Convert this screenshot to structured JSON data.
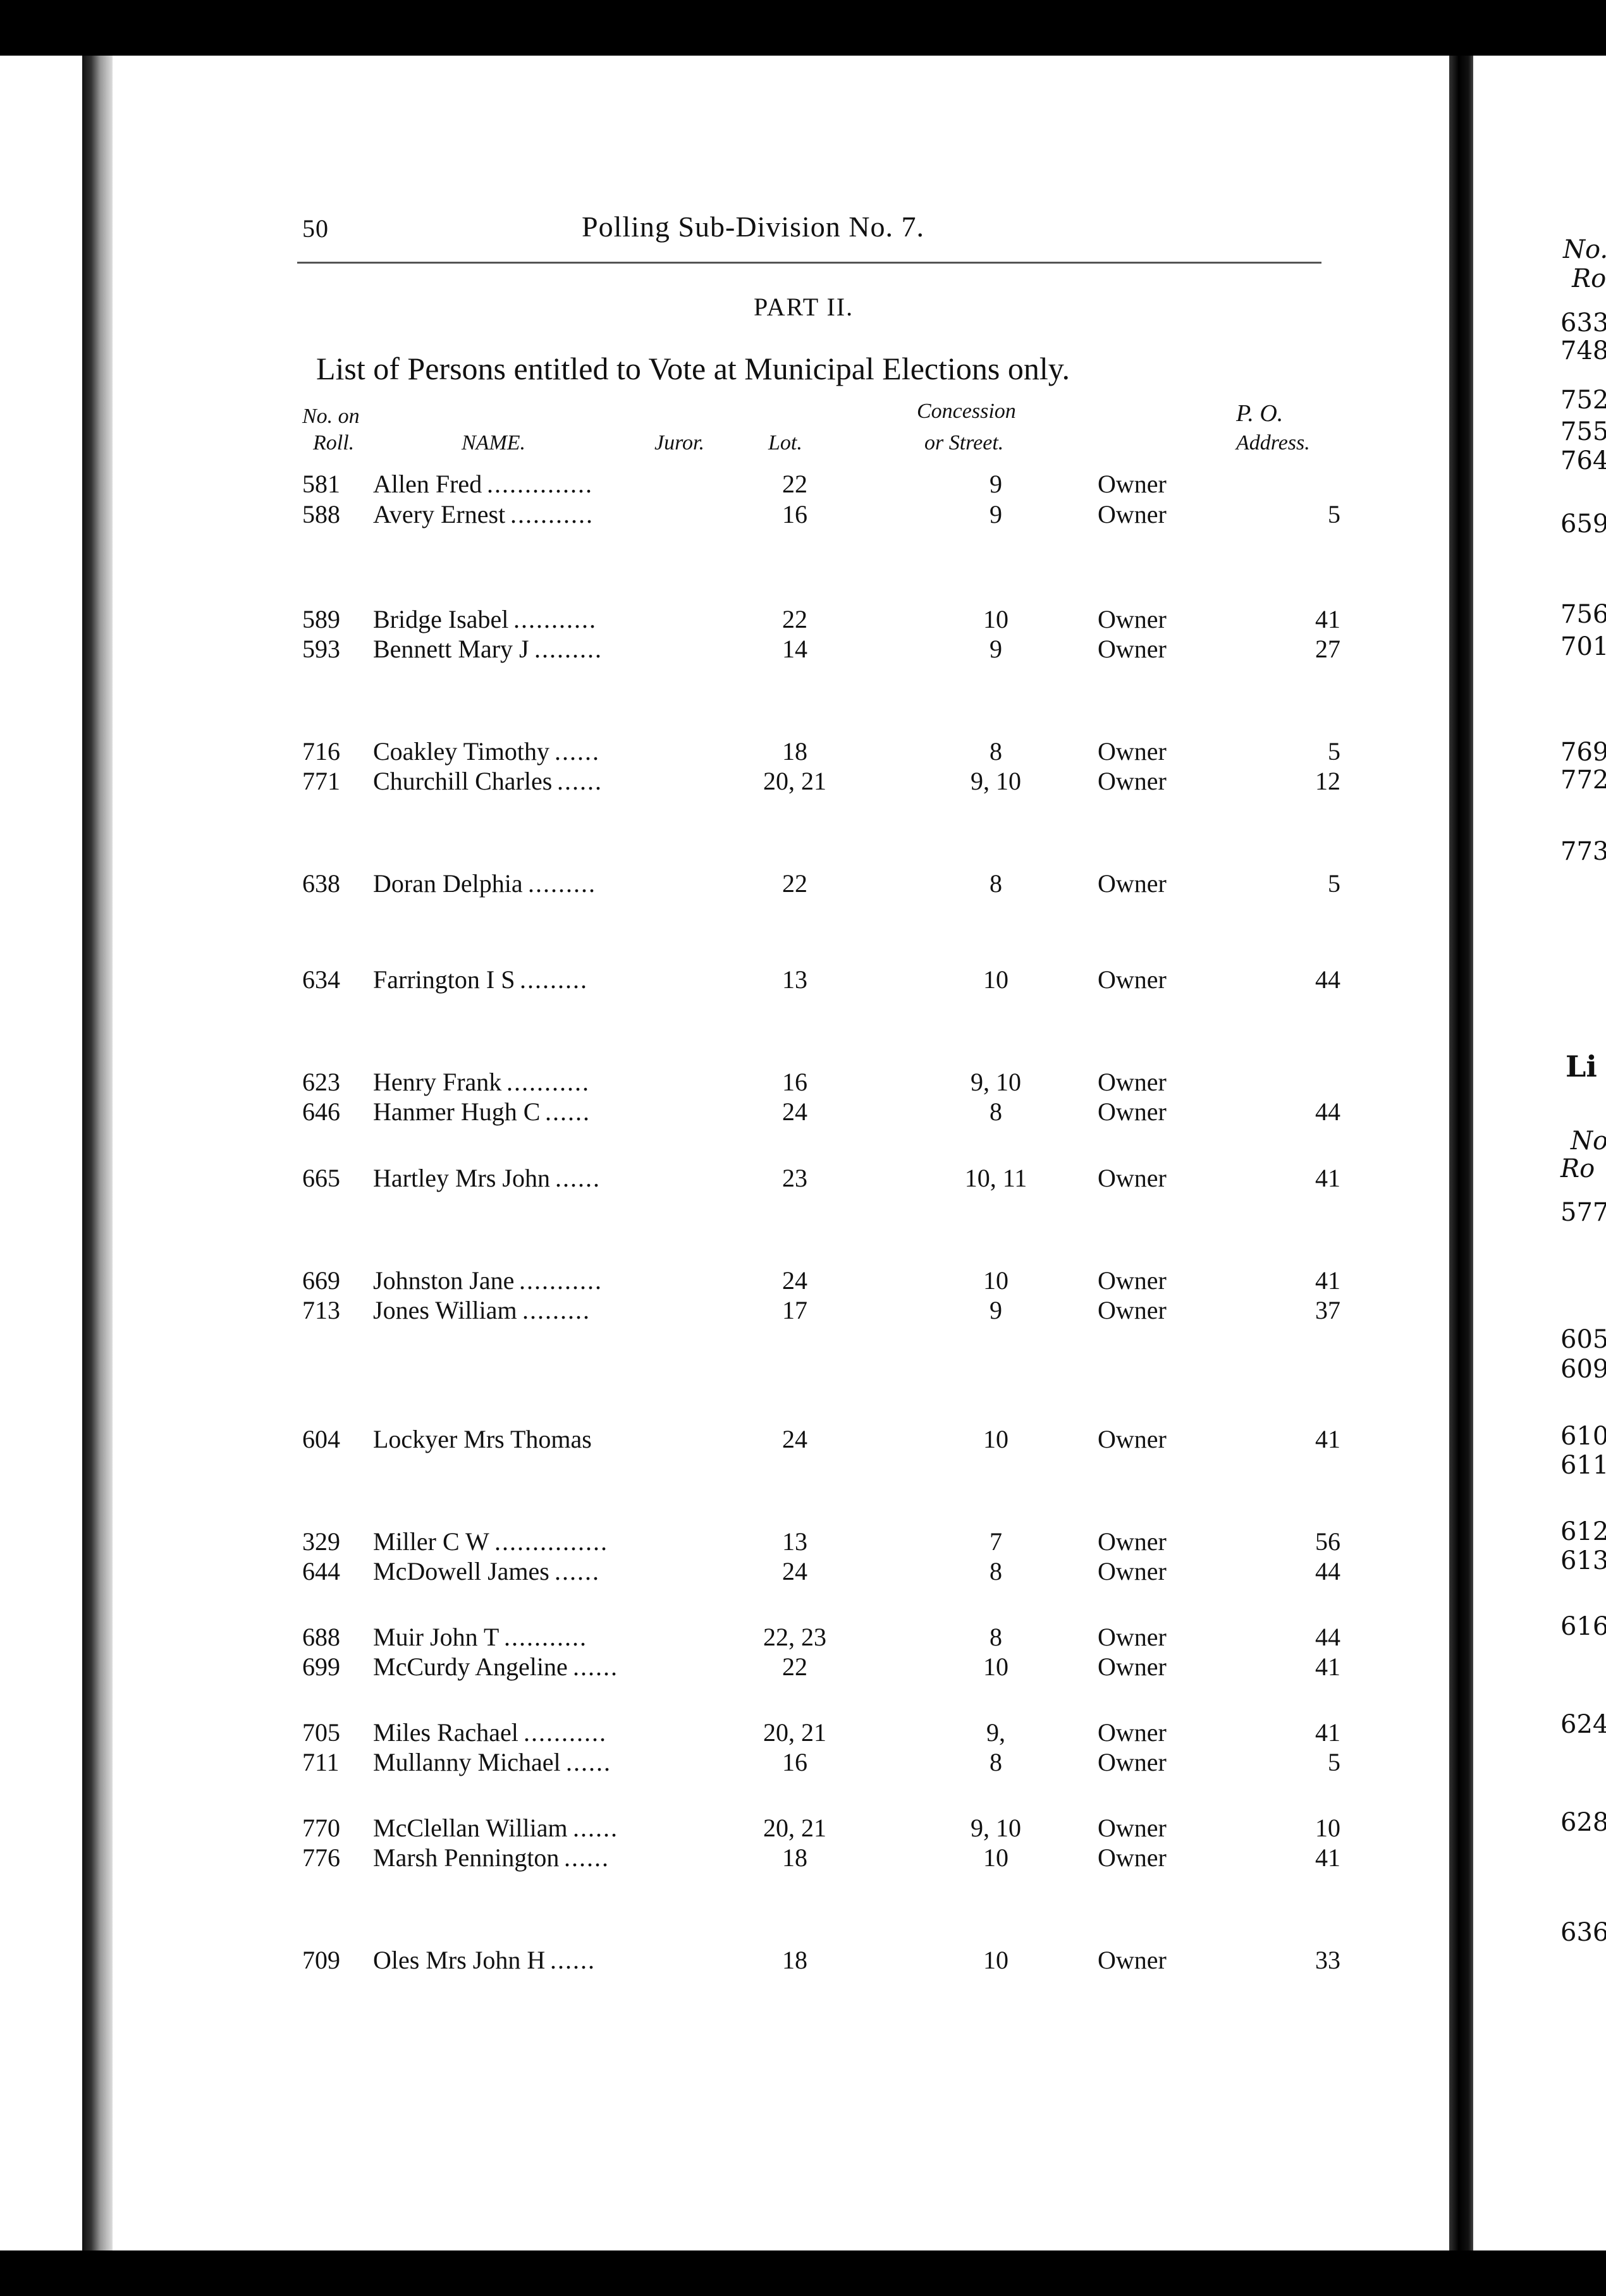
{
  "page_number": "50",
  "running_title": "Polling Sub-Division No. 7.",
  "part": "PART II.",
  "list_title": "List of Persons entitled to Vote at Municipal Elections only.",
  "columns": {
    "no_on": "No. on",
    "roll": "Roll.",
    "name": "NAME.",
    "juror": "Juror.",
    "lot": "Lot.",
    "concession_1": "Concession",
    "concession_2": "or Street.",
    "po_1": "P. O.",
    "po_2": "Address."
  },
  "rows": [
    {
      "no": "581",
      "name": "Allen Fred",
      "dots": "..............",
      "lot": "22",
      "con": "9",
      "status": "Owner",
      "po": ""
    },
    {
      "no": "588",
      "name": "Avery Ernest",
      "dots": "...........",
      "lot": "16",
      "con": "9",
      "status": "Owner",
      "po": "5"
    },
    {
      "no": "589",
      "name": "Bridge Isabel",
      "dots": "...........",
      "lot": "22",
      "con": "10",
      "status": "Owner",
      "po": "41"
    },
    {
      "no": "593",
      "name": "Bennett Mary J",
      "dots": ".........",
      "lot": "14",
      "con": "9",
      "status": "Owner",
      "po": "27"
    },
    {
      "no": "716",
      "name": "Coakley Timothy",
      "dots": "......",
      "lot": "18",
      "con": "8",
      "status": "Owner",
      "po": "5"
    },
    {
      "no": "771",
      "name": "Churchill Charles",
      "dots": "......",
      "lot": "20, 21",
      "con": "9, 10",
      "status": "Owner",
      "po": "12"
    },
    {
      "no": "638",
      "name": "Doran Delphia",
      "dots": ".........",
      "lot": "22",
      "con": "8",
      "status": "Owner",
      "po": "5"
    },
    {
      "no": "634",
      "name": "Farrington I S",
      "dots": ".........",
      "lot": "13",
      "con": "10",
      "status": "Owner",
      "po": "44"
    },
    {
      "no": "623",
      "name": "Henry Frank",
      "dots": "...........",
      "lot": "16",
      "con": "9, 10",
      "status": "Owner",
      "po": ""
    },
    {
      "no": "646",
      "name": "Hanmer Hugh C",
      "dots": "......",
      "lot": "24",
      "con": "8",
      "status": "Owner",
      "po": "44"
    },
    {
      "no": "665",
      "name": "Hartley Mrs John",
      "dots": "......",
      "lot": "23",
      "con": "10, 11",
      "status": "Owner",
      "po": "41"
    },
    {
      "no": "669",
      "name": "Johnston Jane",
      "dots": "...........",
      "lot": "24",
      "con": "10",
      "status": "Owner",
      "po": "41"
    },
    {
      "no": "713",
      "name": "Jones William",
      "dots": ".........",
      "lot": "17",
      "con": "9",
      "status": "Owner",
      "po": "37"
    },
    {
      "no": "604",
      "name": "Lockyer Mrs Thomas",
      "dots": "",
      "lot": "24",
      "con": "10",
      "status": "Owner",
      "po": "41"
    },
    {
      "no": "329",
      "name": "Miller C W",
      "dots": "...............",
      "lot": "13",
      "con": "7",
      "status": "Owner",
      "po": "56"
    },
    {
      "no": "644",
      "name": "McDowell James",
      "dots": "......",
      "lot": "24",
      "con": "8",
      "status": "Owner",
      "po": "44"
    },
    {
      "no": "688",
      "name": "Muir John T",
      "dots": "...........",
      "lot": "22, 23",
      "con": "8",
      "status": "Owner",
      "po": "44"
    },
    {
      "no": "699",
      "name": "McCurdy Angeline",
      "dots": "......",
      "lot": "22",
      "con": "10",
      "status": "Owner",
      "po": "41"
    },
    {
      "no": "705",
      "name": "Miles Rachael",
      "dots": "...........",
      "lot": "20, 21",
      "con": "9,",
      "status": "Owner",
      "po": "41"
    },
    {
      "no": "711",
      "name": "Mullanny Michael",
      "dots": "......",
      "lot": "16",
      "con": "8",
      "status": "Owner",
      "po": "5"
    },
    {
      "no": "770",
      "name": "McClellan William",
      "dots": "......",
      "lot": "20, 21",
      "con": "9, 10",
      "status": "Owner",
      "po": "10"
    },
    {
      "no": "776",
      "name": "Marsh Pennington",
      "dots": "......",
      "lot": "18",
      "con": "10",
      "status": "Owner",
      "po": "41"
    },
    {
      "no": "709",
      "name": "Oles Mrs John H",
      "dots": "......",
      "lot": "18",
      "con": "10",
      "status": "Owner",
      "po": "33"
    }
  ],
  "facing_page": {
    "items": [
      "No.",
      "Ro",
      "633",
      "748",
      "752",
      "755",
      "764",
      "659",
      "756",
      "701",
      "769",
      "772",
      "773",
      "Li",
      "No",
      "Ro",
      "577",
      "605",
      "609",
      "610",
      "611",
      "612",
      "613",
      "616",
      "624",
      "628",
      "636"
    ]
  }
}
